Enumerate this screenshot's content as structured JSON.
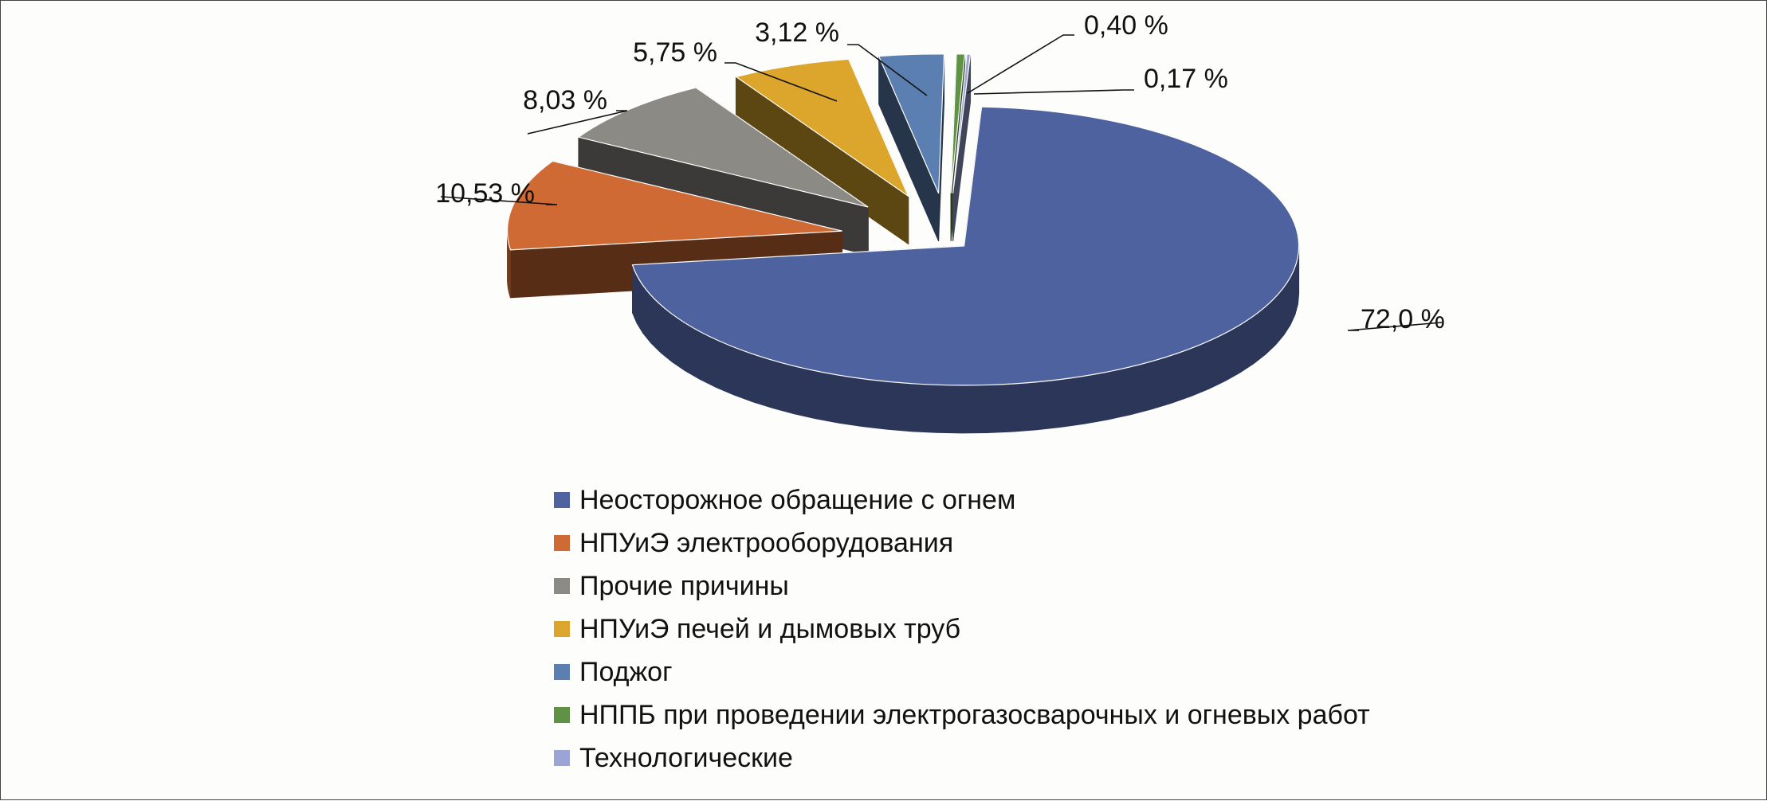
{
  "chart_data": {
    "type": "pie",
    "title": "",
    "three_d": true,
    "exploded": true,
    "legend_position": "bottom",
    "slices": [
      {
        "label": "Неосторожное обращение с огнем",
        "value": 72.0,
        "value_label": "72,0 %",
        "color": "#4f62a0"
      },
      {
        "label": "НПУиЭ электрооборудования",
        "value": 10.53,
        "value_label": "10,53 %",
        "color": "#cf6a35"
      },
      {
        "label": "Прочие причины",
        "value": 8.03,
        "value_label": "8,03 %",
        "color": "#8c8a85"
      },
      {
        "label": "НПУиЭ печей и дымовых труб",
        "value": 5.75,
        "value_label": "5,75 %",
        "color": "#dba62b"
      },
      {
        "label": "Поджог",
        "value": 3.12,
        "value_label": "3,12 %",
        "color": "#5b7fb0"
      },
      {
        "label": "НППБ при проведении электрогазосварочных и огневых работ",
        "value": 0.4,
        "value_label": "0,40 %",
        "color": "#5f9245"
      },
      {
        "label": "Технологические",
        "value": 0.17,
        "value_label": "0,17 %",
        "color": "#9aa5d6"
      }
    ]
  }
}
